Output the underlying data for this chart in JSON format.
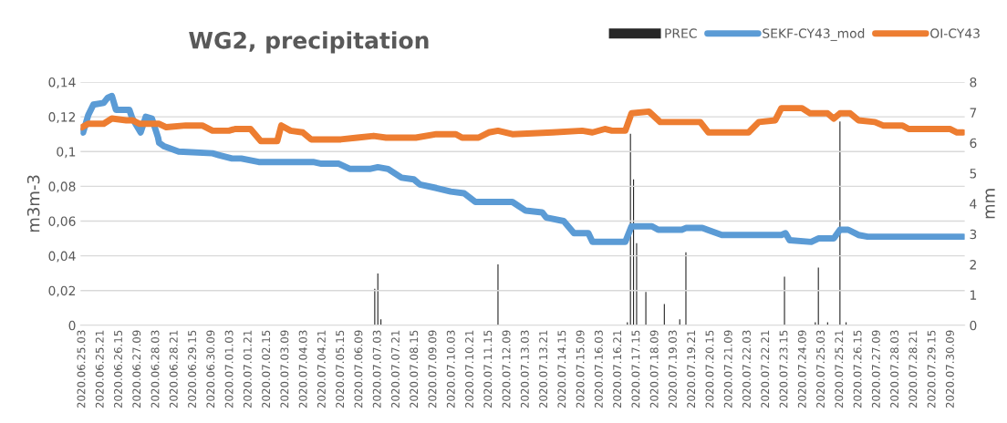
{
  "chart_data": {
    "type": "line",
    "title": "WG2, precipitation",
    "ylabel": "m3m-3",
    "y2label": "mm",
    "xlim": [
      "2020-06-25T01:30",
      "2020-07-30T22:30"
    ],
    "xticks": [
      {
        "value": "2020-06-25T03:00",
        "label": "2020.06.25.03"
      },
      {
        "value": "2020-06-25T21:00",
        "label": "2020.06.25.21"
      },
      {
        "value": "2020-06-26T15:00",
        "label": "2020.06.26.15"
      },
      {
        "value": "2020-06-27T09:00",
        "label": "2020.06.27.09"
      },
      {
        "value": "2020-06-28T03:00",
        "label": "2020.06.28.03"
      },
      {
        "value": "2020-06-28T21:00",
        "label": "2020.06.28.21"
      },
      {
        "value": "2020-06-29T15:00",
        "label": "2020.06.29.15"
      },
      {
        "value": "2020-06-30T09:00",
        "label": "2020.06.30.09"
      },
      {
        "value": "2020-07-01T03:00",
        "label": "2020.07.01.03"
      },
      {
        "value": "2020-07-01T21:00",
        "label": "2020.07.01.21"
      },
      {
        "value": "2020-07-02T15:00",
        "label": "2020.07.02.15"
      },
      {
        "value": "2020-07-03T09:00",
        "label": "2020.07.03.09"
      },
      {
        "value": "2020-07-04T03:00",
        "label": "2020.07.04.03"
      },
      {
        "value": "2020-07-04T21:00",
        "label": "2020.07.04.21"
      },
      {
        "value": "2020-07-05T15:00",
        "label": "2020.07.05.15"
      },
      {
        "value": "2020-07-06T09:00",
        "label": "2020.07.06.09"
      },
      {
        "value": "2020-07-07T03:00",
        "label": "2020.07.07.03"
      },
      {
        "value": "2020-07-07T21:00",
        "label": "2020.07.07.21"
      },
      {
        "value": "2020-07-08T15:00",
        "label": "2020.07.08.15"
      },
      {
        "value": "2020-07-09T09:00",
        "label": "2020.07.09.09"
      },
      {
        "value": "2020-07-10T03:00",
        "label": "2020.07.10.03"
      },
      {
        "value": "2020-07-10T21:00",
        "label": "2020.07.10.21"
      },
      {
        "value": "2020-07-11T15:00",
        "label": "2020.07.11.15"
      },
      {
        "value": "2020-07-12T09:00",
        "label": "2020.07.12.09"
      },
      {
        "value": "2020-07-13T03:00",
        "label": "2020.07.13.03"
      },
      {
        "value": "2020-07-13T21:00",
        "label": "2020.07.13.21"
      },
      {
        "value": "2020-07-14T15:00",
        "label": "2020.07.14.15"
      },
      {
        "value": "2020-07-15T09:00",
        "label": "2020.07.15.09"
      },
      {
        "value": "2020-07-16T03:00",
        "label": "2020.07.16.03"
      },
      {
        "value": "2020-07-16T21:00",
        "label": "2020.07.16.21"
      },
      {
        "value": "2020-07-17T15:00",
        "label": "2020.07.17.15"
      },
      {
        "value": "2020-07-18T09:00",
        "label": "2020.07.18.09"
      },
      {
        "value": "2020-07-19T03:00",
        "label": "2020.07.19.03"
      },
      {
        "value": "2020-07-19T21:00",
        "label": "2020.07.19.21"
      },
      {
        "value": "2020-07-20T15:00",
        "label": "2020.07.20.15"
      },
      {
        "value": "2020-07-21T09:00",
        "label": "2020.07.21.09"
      },
      {
        "value": "2020-07-22T03:00",
        "label": "2020.07.22.03"
      },
      {
        "value": "2020-07-22T21:00",
        "label": "2020.07.22.21"
      },
      {
        "value": "2020-07-23T15:00",
        "label": "2020.07.23.15"
      },
      {
        "value": "2020-07-24T09:00",
        "label": "2020.07.24.09"
      },
      {
        "value": "2020-07-25T03:00",
        "label": "2020.07.25.03"
      },
      {
        "value": "2020-07-25T21:00",
        "label": "2020.07.25.21"
      },
      {
        "value": "2020-07-26T15:00",
        "label": "2020.07.26.15"
      },
      {
        "value": "2020-07-27T09:00",
        "label": "2020.07.27.09"
      },
      {
        "value": "2020-07-28T03:00",
        "label": "2020.07.28.03"
      },
      {
        "value": "2020-07-28T21:00",
        "label": "2020.07.28.21"
      },
      {
        "value": "2020-07-29T15:00",
        "label": "2020.07.29.15"
      },
      {
        "value": "2020-07-30T09:00",
        "label": "2020.07.30.09"
      }
    ],
    "ylim": [
      0,
      0.14
    ],
    "yticks": [
      0,
      {
        "value": 0.02,
        "label": "0,02"
      },
      {
        "value": 0.04,
        "label": "0,04"
      },
      {
        "value": 0.06,
        "label": "0,06"
      },
      {
        "value": 0.08,
        "label": "0,08"
      },
      {
        "value": 0.1,
        "label": "0,1"
      },
      {
        "value": 0.12,
        "label": "0,12"
      },
      {
        "value": 0.14,
        "label": "0,14"
      }
    ],
    "y2lim": [
      0,
      8
    ],
    "y2ticks": [
      0,
      1,
      2,
      3,
      4,
      5,
      6,
      7,
      8
    ],
    "grid": "y",
    "legend": "top right",
    "marker": "none",
    "line_style": "solid",
    "series": [
      {
        "name": "PREC",
        "type": "bar",
        "axis": "y2",
        "color": "#262626",
        "x": [
          "2020-07-07T00:00",
          "2020-07-07T03:00",
          "2020-07-07T06:00",
          "2020-07-12T00:00",
          "2020-07-17T06:00",
          "2020-07-17T09:00",
          "2020-07-17T12:00",
          "2020-07-17T15:00",
          "2020-07-18T00:00",
          "2020-07-18T18:00",
          "2020-07-19T09:00",
          "2020-07-19T15:00",
          "2020-07-23T15:00",
          "2020-07-24T21:00",
          "2020-07-25T00:00",
          "2020-07-25T09:00",
          "2020-07-25T21:00",
          "2020-07-26T03:00"
        ],
        "values": [
          1.2,
          1.7,
          0.2,
          2.0,
          0.1,
          6.3,
          4.8,
          2.7,
          1.1,
          0.7,
          0.2,
          2.4,
          1.6,
          0.1,
          1.9,
          0.1,
          6.7,
          0.1
        ]
      },
      {
        "name": "SEKF-CY43_mod",
        "color": "#5b9bd5",
        "x": [
          "2020-06-25T03:00",
          "2020-06-25T04:00",
          "2020-06-25T09:00",
          "2020-06-25T14:00",
          "2020-06-26T00:00",
          "2020-06-26T04:00",
          "2020-06-26T08:00",
          "2020-06-26T12:00",
          "2020-06-27T01:00",
          "2020-06-27T04:00",
          "2020-06-27T12:00",
          "2020-06-27T17:00",
          "2020-06-27T23:00",
          "2020-06-28T05:00",
          "2020-06-28T06:00",
          "2020-06-28T11:00",
          "2020-06-29T01:00",
          "2020-06-30T10:00",
          "2020-06-30T16:00",
          "2020-07-01T05:00",
          "2020-07-01T14:00",
          "2020-07-02T07:00",
          "2020-07-04T12:00",
          "2020-07-04T20:00",
          "2020-07-05T13:00",
          "2020-07-06T00:00",
          "2020-07-06T19:00",
          "2020-07-07T03:00",
          "2020-07-07T13:00",
          "2020-07-08T02:00",
          "2020-07-08T14:00",
          "2020-07-08T20:00",
          "2020-07-09T12:00",
          "2020-07-10T02:00",
          "2020-07-10T15:00",
          "2020-07-11T02:00",
          "2020-07-11T18:00",
          "2020-07-12T14:00",
          "2020-07-13T03:00",
          "2020-07-13T19:00",
          "2020-07-13T23:00",
          "2020-07-14T16:00",
          "2020-07-15T02:00",
          "2020-07-15T16:00",
          "2020-07-15T20:00",
          "2020-07-17T04:00",
          "2020-07-17T10:00",
          "2020-07-18T06:00",
          "2020-07-18T12:00",
          "2020-07-19T11:00",
          "2020-07-19T15:00",
          "2020-07-20T07:00",
          "2020-07-21T02:00",
          "2020-07-23T12:00",
          "2020-07-23T16:00",
          "2020-07-23T20:00",
          "2020-07-24T17:00",
          "2020-07-25T00:00",
          "2020-07-25T15:00",
          "2020-07-25T21:00",
          "2020-07-26T05:00",
          "2020-07-26T15:00",
          "2020-07-27T00:00",
          "2020-07-30T21:00"
        ],
        "values": [
          0.112,
          0.111,
          0.121,
          0.127,
          0.128,
          0.131,
          0.132,
          0.124,
          0.124,
          0.119,
          0.111,
          0.12,
          0.119,
          0.108,
          0.105,
          0.103,
          0.1,
          0.099,
          0.098,
          0.096,
          0.096,
          0.094,
          0.094,
          0.093,
          0.093,
          0.09,
          0.09,
          0.091,
          0.09,
          0.085,
          0.084,
          0.081,
          0.079,
          0.077,
          0.076,
          0.071,
          0.071,
          0.071,
          0.066,
          0.065,
          0.062,
          0.06,
          0.053,
          0.053,
          0.048,
          0.048,
          0.057,
          0.057,
          0.055,
          0.055,
          0.056,
          0.056,
          0.052,
          0.052,
          0.053,
          0.049,
          0.048,
          0.05,
          0.05,
          0.055,
          0.055,
          0.052,
          0.051,
          0.051
        ]
      },
      {
        "name": "OI-CY43",
        "color": "#ed7d31",
        "x": [
          "2020-06-25T03:00",
          "2020-06-25T09:00",
          "2020-06-26T00:00",
          "2020-06-26T08:00",
          "2020-06-26T22:00",
          "2020-06-27T04:00",
          "2020-06-27T11:00",
          "2020-06-28T06:00",
          "2020-06-28T13:00",
          "2020-06-29T08:00",
          "2020-06-30T00:00",
          "2020-06-30T10:00",
          "2020-07-01T02:00",
          "2020-07-01T08:00",
          "2020-07-01T23:00",
          "2020-07-02T09:00",
          "2020-07-03T01:00",
          "2020-07-03T05:00",
          "2020-07-03T14:00",
          "2020-07-04T02:00",
          "2020-07-04T10:00",
          "2020-07-05T15:00",
          "2020-07-06T07:00",
          "2020-07-06T23:00",
          "2020-07-07T11:00",
          "2020-07-08T06:00",
          "2020-07-08T16:00",
          "2020-07-09T12:00",
          "2020-07-10T07:00",
          "2020-07-10T13:00",
          "2020-07-11T05:00",
          "2020-07-11T15:00",
          "2020-07-12T00:00",
          "2020-07-12T14:00",
          "2020-07-14T05:00",
          "2020-07-15T10:00",
          "2020-07-15T20:00",
          "2020-07-16T08:00",
          "2020-07-16T15:00",
          "2020-07-17T04:00",
          "2020-07-17T10:00",
          "2020-07-18T03:00",
          "2020-07-18T14:00",
          "2020-07-19T07:00",
          "2020-07-20T05:00",
          "2020-07-20T13:00",
          "2020-07-22T04:00",
          "2020-07-22T14:00",
          "2020-07-23T06:00",
          "2020-07-23T12:00",
          "2020-07-24T08:00",
          "2020-07-24T16:00",
          "2020-07-25T09:00",
          "2020-07-25T15:00",
          "2020-07-25T21:00",
          "2020-07-26T07:00",
          "2020-07-26T15:00",
          "2020-07-27T07:00",
          "2020-07-27T15:00",
          "2020-07-28T10:00",
          "2020-07-28T16:00",
          "2020-07-30T08:00",
          "2020-07-30T15:00",
          "2020-07-30T21:00"
        ],
        "values": [
          0.114,
          0.116,
          0.116,
          0.119,
          0.118,
          0.118,
          0.116,
          0.116,
          0.114,
          0.115,
          0.115,
          0.112,
          0.112,
          0.113,
          0.113,
          0.106,
          0.106,
          0.115,
          0.112,
          0.111,
          0.107,
          0.107,
          0.108,
          0.109,
          0.108,
          0.108,
          0.108,
          0.11,
          0.11,
          0.108,
          0.108,
          0.111,
          0.112,
          0.11,
          0.111,
          0.112,
          0.111,
          0.113,
          0.112,
          0.112,
          0.122,
          0.123,
          0.117,
          0.117,
          0.117,
          0.111,
          0.111,
          0.117,
          0.118,
          0.125,
          0.125,
          0.122,
          0.122,
          0.119,
          0.122,
          0.122,
          0.118,
          0.117,
          0.115,
          0.115,
          0.113,
          0.113,
          0.111,
          0.111
        ]
      }
    ]
  }
}
